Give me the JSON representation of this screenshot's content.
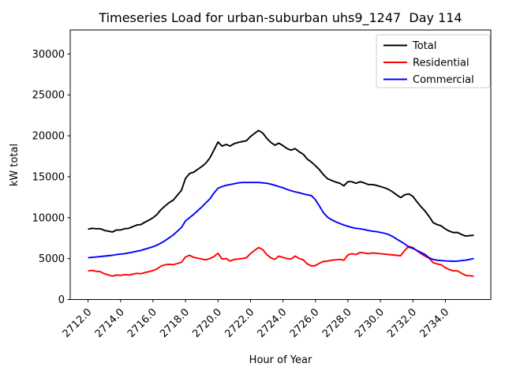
{
  "figure": {
    "background": "#ffffff",
    "border_color": "#000000"
  },
  "chart_data": {
    "type": "line",
    "title": "Timeseries Load for urban-suburban uhs9_1247  Day 114",
    "xlabel": "Hour of Year",
    "ylabel": "kW total",
    "grid": false,
    "legend_position": "upper right",
    "xlim": [
      2710.9,
      2736.8
    ],
    "ylim": [
      0,
      32930
    ],
    "xticks": [
      2712,
      2714,
      2716,
      2718,
      2720,
      2722,
      2724,
      2726,
      2728,
      2730,
      2732,
      2734
    ],
    "xtick_labels": [
      "2712.0",
      "2714.0",
      "2716.0",
      "2718.0",
      "2720.0",
      "2722.0",
      "2724.0",
      "2726.0",
      "2728.0",
      "2730.0",
      "2732.0",
      "2734.0"
    ],
    "yticks": [
      0,
      5000,
      10000,
      15000,
      20000,
      25000,
      30000
    ],
    "ytick_labels": [
      "0",
      "5000",
      "10000",
      "15000",
      "20000",
      "25000",
      "30000"
    ],
    "x": [
      2712.0,
      2712.25,
      2712.5,
      2712.75,
      2713.0,
      2713.25,
      2713.5,
      2713.75,
      2714.0,
      2714.25,
      2714.5,
      2714.75,
      2715.0,
      2715.25,
      2715.5,
      2715.75,
      2716.0,
      2716.25,
      2716.5,
      2716.75,
      2717.0,
      2717.25,
      2717.5,
      2717.75,
      2718.0,
      2718.25,
      2718.5,
      2718.75,
      2719.0,
      2719.25,
      2719.5,
      2719.75,
      2720.0,
      2720.25,
      2720.5,
      2720.75,
      2721.0,
      2721.25,
      2721.5,
      2721.75,
      2722.0,
      2722.25,
      2722.5,
      2722.75,
      2723.0,
      2723.25,
      2723.5,
      2723.75,
      2724.0,
      2724.25,
      2724.5,
      2724.75,
      2725.0,
      2725.25,
      2725.5,
      2725.75,
      2726.0,
      2726.25,
      2726.5,
      2726.75,
      2727.0,
      2727.25,
      2727.5,
      2727.75,
      2728.0,
      2728.25,
      2728.5,
      2728.75,
      2729.0,
      2729.25,
      2729.5,
      2729.75,
      2730.0,
      2730.25,
      2730.5,
      2730.75,
      2731.0,
      2731.25,
      2731.5,
      2731.75,
      2732.0,
      2732.25,
      2732.5,
      2732.75,
      2733.0,
      2733.25,
      2733.5,
      2733.75,
      2734.0,
      2734.25,
      2734.5,
      2734.75,
      2735.0,
      2735.25,
      2735.5,
      2735.75
    ],
    "series": [
      {
        "name": "Total",
        "color": "#000000",
        "values": [
          8600,
          8700,
          8650,
          8650,
          8450,
          8350,
          8250,
          8500,
          8500,
          8650,
          8700,
          8900,
          9100,
          9150,
          9450,
          9700,
          10000,
          10400,
          11000,
          11450,
          11850,
          12150,
          12750,
          13350,
          14800,
          15400,
          15550,
          15900,
          16250,
          16650,
          17300,
          18250,
          19250,
          18750,
          18950,
          18750,
          19050,
          19200,
          19300,
          19400,
          19900,
          20300,
          20650,
          20350,
          19700,
          19200,
          18850,
          19100,
          18800,
          18450,
          18250,
          18450,
          18050,
          17750,
          17150,
          16800,
          16350,
          15850,
          15250,
          14750,
          14550,
          14350,
          14200,
          13900,
          14400,
          14400,
          14200,
          14400,
          14250,
          14050,
          14050,
          13950,
          13800,
          13650,
          13450,
          13150,
          12800,
          12450,
          12800,
          12900,
          12600,
          11950,
          11350,
          10800,
          10150,
          9400,
          9150,
          9000,
          8620,
          8350,
          8180,
          8200,
          7950,
          7750,
          7800,
          7850
        ]
      },
      {
        "name": "Residential",
        "color": "#ff0000",
        "values": [
          3500,
          3550,
          3450,
          3400,
          3150,
          3000,
          2850,
          3000,
          2950,
          3050,
          3000,
          3100,
          3200,
          3150,
          3300,
          3400,
          3550,
          3750,
          4100,
          4250,
          4300,
          4250,
          4400,
          4550,
          5200,
          5400,
          5150,
          5050,
          4950,
          4850,
          5000,
          5250,
          5650,
          4950,
          5000,
          4700,
          4900,
          4950,
          5000,
          5100,
          5600,
          6000,
          6350,
          6100,
          5500,
          5100,
          4900,
          5300,
          5150,
          5000,
          4950,
          5300,
          5000,
          4850,
          4350,
          4100,
          4150,
          4450,
          4650,
          4700,
          4800,
          4850,
          4900,
          4800,
          5450,
          5600,
          5500,
          5750,
          5700,
          5600,
          5700,
          5650,
          5600,
          5550,
          5500,
          5450,
          5400,
          5350,
          6000,
          6500,
          6350,
          5950,
          5600,
          5300,
          5050,
          4500,
          4350,
          4250,
          3900,
          3650,
          3500,
          3500,
          3200,
          2950,
          2900,
          2850
        ]
      },
      {
        "name": "Commercial",
        "color": "#0000ff",
        "values": [
          5100,
          5150,
          5200,
          5250,
          5300,
          5350,
          5400,
          5500,
          5550,
          5600,
          5700,
          5800,
          5900,
          6000,
          6150,
          6300,
          6450,
          6650,
          6900,
          7200,
          7550,
          7900,
          8350,
          8800,
          9600,
          10000,
          10400,
          10850,
          11300,
          11800,
          12300,
          13000,
          13600,
          13800,
          13950,
          14050,
          14150,
          14250,
          14300,
          14300,
          14300,
          14300,
          14300,
          14250,
          14200,
          14100,
          13950,
          13800,
          13650,
          13450,
          13300,
          13150,
          13050,
          12900,
          12800,
          12700,
          12200,
          11400,
          10600,
          10050,
          9750,
          9500,
          9300,
          9100,
          8950,
          8800,
          8700,
          8650,
          8550,
          8450,
          8350,
          8300,
          8200,
          8100,
          7950,
          7700,
          7400,
          7100,
          6800,
          6400,
          6250,
          6000,
          5750,
          5500,
          5100,
          4900,
          4800,
          4750,
          4720,
          4700,
          4680,
          4700,
          4750,
          4800,
          4900,
          5000
        ]
      }
    ]
  }
}
